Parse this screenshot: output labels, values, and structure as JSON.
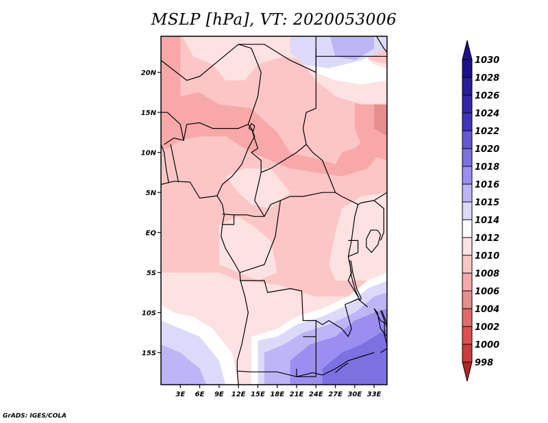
{
  "title": "MSLP [hPa], VT: 2020053006",
  "footer": "GrADS: IGES/COLA",
  "map": {
    "variable": "MSLP",
    "units": "hPa",
    "valid_time": "2020053006",
    "lon_range": [
      0,
      35
    ],
    "lat_range": [
      -19,
      24.5
    ],
    "lat_ticks": [
      {
        "value": 20,
        "label": "20N"
      },
      {
        "value": 15,
        "label": "15N"
      },
      {
        "value": 10,
        "label": "10N"
      },
      {
        "value": 5,
        "label": "5N"
      },
      {
        "value": 0,
        "label": "EQ"
      },
      {
        "value": -5,
        "label": "5S"
      },
      {
        "value": -10,
        "label": "10S"
      },
      {
        "value": -15,
        "label": "15S"
      }
    ],
    "lon_ticks": [
      {
        "value": 3,
        "label": "3E"
      },
      {
        "value": 6,
        "label": "6E"
      },
      {
        "value": 9,
        "label": "9E"
      },
      {
        "value": 12,
        "label": "12E"
      },
      {
        "value": 15,
        "label": "15E"
      },
      {
        "value": 18,
        "label": "18E"
      },
      {
        "value": 21,
        "label": "21E"
      },
      {
        "value": 24,
        "label": "24E"
      },
      {
        "value": 27,
        "label": "27E"
      },
      {
        "value": 30,
        "label": "30E"
      },
      {
        "value": 33,
        "label": "33E"
      }
    ]
  },
  "colorbar": {
    "levels": [
      {
        "label": "1030",
        "color": "#1e0f8c"
      },
      {
        "label": "1028",
        "color": "#2a1c9a"
      },
      {
        "label": "1026",
        "color": "#3424ac"
      },
      {
        "label": "1024",
        "color": "#4232bf"
      },
      {
        "label": "1022",
        "color": "#6658d4"
      },
      {
        "label": "1020",
        "color": "#7d70e0"
      },
      {
        "label": "1018",
        "color": "#9a8ff0"
      },
      {
        "label": "1016",
        "color": "#bcb5f6"
      },
      {
        "label": "1015",
        "color": "#dcdafb"
      },
      {
        "label": "1014",
        "color": "#ffffff"
      },
      {
        "label": "1012",
        "color": "#fde2e2"
      },
      {
        "label": "1010",
        "color": "#fcc6c6"
      },
      {
        "label": "1008",
        "color": "#f8a8a8"
      },
      {
        "label": "1006",
        "color": "#e58e8e"
      },
      {
        "label": "1004",
        "color": "#e46a6a"
      },
      {
        "label": "1002",
        "color": "#e04f4f"
      },
      {
        "label": "1000",
        "color": "#cc3a3a"
      },
      {
        "label": "998",
        "color": "#b22424"
      }
    ],
    "top_arrow_color": "#1e0f8c",
    "bottom_arrow_color": "#b22424"
  },
  "field_colors": {
    "p1016": "#bcb5f6",
    "p1018": "#9a8ff0",
    "p1020": "#7d70e0",
    "p1015": "#dcdafb",
    "p1014": "#ffffff",
    "p1012": "#fde2e2",
    "p1010": "#fcc6c6",
    "p1008": "#f8a8a8",
    "p1006": "#e58e8e"
  }
}
